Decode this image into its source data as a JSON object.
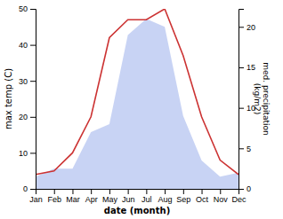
{
  "chart_data": {
    "type": "line",
    "categories": [
      "Jan",
      "Feb",
      "Mar",
      "Apr",
      "May",
      "Jun",
      "Jul",
      "Aug",
      "Sep",
      "Oct",
      "Nov",
      "Dec"
    ],
    "series": [
      {
        "type": "area",
        "axis": "y2",
        "color": "#aabbee",
        "values": [
          1.5,
          2.5,
          2.5,
          7,
          8,
          19,
          21,
          20,
          9,
          3.5,
          1.5,
          2
        ]
      },
      {
        "type": "line",
        "color": "#cc3333",
        "values": [
          4,
          5,
          10,
          20,
          42,
          47,
          47,
          50,
          37,
          20,
          8,
          4
        ]
      }
    ],
    "x_label": "date (month)",
    "y_label": "max temp (C)",
    "y2_label": "med. precipitation\n(kg/m2)",
    "ylim": [
      0,
      50
    ],
    "yticks": [
      0,
      10,
      20,
      30,
      40,
      50
    ],
    "y2lim": [
      0,
      22.22
    ],
    "y2ticks": [
      0,
      5,
      10,
      15,
      20
    ],
    "grid": false
  }
}
